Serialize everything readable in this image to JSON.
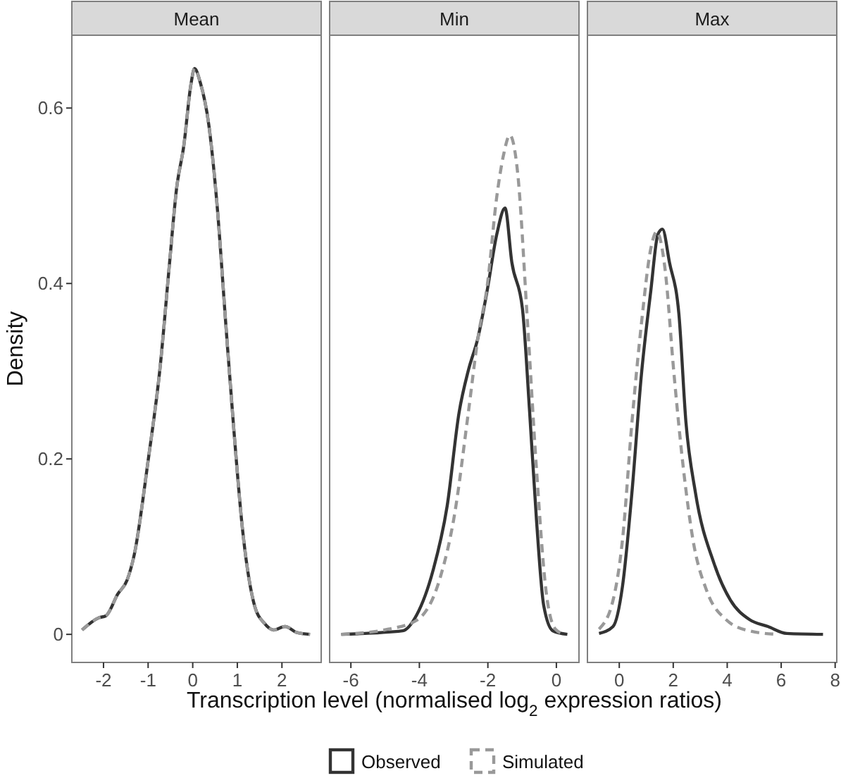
{
  "chart_data": [
    {
      "type": "line",
      "title": "Mean",
      "ylabel": "Density",
      "xlim": [
        -2.71,
        2.88
      ],
      "xticks": [
        -2,
        -1,
        0,
        1,
        2
      ],
      "ylim": [
        -0.032,
        0.683
      ],
      "yticks": [
        0,
        0.2,
        0.4,
        0.6
      ],
      "grid": false,
      "tick_labels": "xy",
      "series": [
        {
          "color": "#333333",
          "line_style": "solid",
          "x": [
            -2.48,
            -2.1,
            -1.95,
            -1.68,
            -1.47,
            -1.31,
            -1.0,
            -0.73,
            -0.52,
            -0.36,
            -0.2,
            -0.04,
            0.04,
            0.17,
            0.36,
            0.54,
            0.75,
            0.91,
            1.12,
            1.39,
            1.6,
            1.81,
            2.07,
            2.34,
            2.63
          ],
          "values": [
            0.005,
            0.019,
            0.021,
            0.046,
            0.062,
            0.091,
            0.198,
            0.305,
            0.423,
            0.509,
            0.557,
            0.627,
            0.645,
            0.629,
            0.581,
            0.493,
            0.348,
            0.241,
            0.118,
            0.032,
            0.013,
            0.005,
            0.009,
            0.002,
            0
          ]
        },
        {
          "color": "#999999",
          "line_style": "dashed",
          "x": [
            -2.48,
            -2.1,
            -1.95,
            -1.68,
            -1.47,
            -1.31,
            -1.0,
            -0.73,
            -0.52,
            -0.36,
            -0.2,
            -0.04,
            0.04,
            0.17,
            0.36,
            0.54,
            0.75,
            0.91,
            1.12,
            1.39,
            1.6,
            1.81,
            2.07,
            2.34,
            2.63
          ],
          "values": [
            0.005,
            0.019,
            0.021,
            0.046,
            0.062,
            0.091,
            0.198,
            0.305,
            0.423,
            0.509,
            0.557,
            0.627,
            0.645,
            0.629,
            0.581,
            0.493,
            0.348,
            0.241,
            0.118,
            0.032,
            0.013,
            0.005,
            0.009,
            0.002,
            0
          ]
        }
      ]
    },
    {
      "type": "line",
      "title": "Min",
      "xlabel": "Transcription level (normalised log$_{2}$ expression ratios)",
      "xlim": [
        -6.62,
        0.66
      ],
      "xticks": [
        -6,
        -4,
        -2,
        0
      ],
      "ylim": [
        -0.032,
        0.683
      ],
      "grid": false,
      "legend": "bottom",
      "tick_labels": "x",
      "series": [
        {
          "name": "Observed",
          "color": "#333333",
          "line_style": "solid",
          "x": [
            -6.28,
            -4.49,
            -4.08,
            -3.6,
            -3.19,
            -2.84,
            -2.57,
            -2.29,
            -2.02,
            -1.74,
            -1.5,
            -1.3,
            -0.99,
            -0.78,
            -0.58,
            -0.37,
            -0.1,
            0.32
          ],
          "values": [
            0,
            0.004,
            0.022,
            0.073,
            0.146,
            0.253,
            0.301,
            0.338,
            0.392,
            0.456,
            0.486,
            0.424,
            0.371,
            0.253,
            0.13,
            0.033,
            0.004,
            0
          ]
        },
        {
          "name": "Simulated",
          "color": "#999999",
          "line_style": "dashed",
          "x": [
            -6.28,
            -4.9,
            -4.08,
            -3.39,
            -2.98,
            -2.57,
            -2.29,
            -2.02,
            -1.74,
            -1.54,
            -1.36,
            -1.13,
            -0.85,
            -0.58,
            -0.3,
            -0.03,
            0.25
          ],
          "values": [
            0,
            0.006,
            0.016,
            0.065,
            0.135,
            0.253,
            0.338,
            0.397,
            0.499,
            0.547,
            0.569,
            0.526,
            0.36,
            0.188,
            0.049,
            0.006,
            0
          ]
        }
      ]
    },
    {
      "type": "line",
      "title": "Max",
      "xlim": [
        -1.18,
        8.06
      ],
      "xticks": [
        0,
        2,
        4,
        6,
        8
      ],
      "ylim": [
        -0.032,
        0.683
      ],
      "grid": false,
      "tick_labels": "x",
      "series": [
        {
          "color": "#333333",
          "line_style": "solid",
          "x": [
            -0.75,
            -0.23,
            0.12,
            0.47,
            0.82,
            1.17,
            1.43,
            1.6,
            1.86,
            2.21,
            2.47,
            2.82,
            3.51,
            4.12,
            4.82,
            5.51,
            6.21,
            7.55
          ],
          "values": [
            0.001,
            0.009,
            0.055,
            0.162,
            0.296,
            0.392,
            0.456,
            0.462,
            0.424,
            0.365,
            0.242,
            0.162,
            0.081,
            0.039,
            0.017,
            0.009,
            0.001,
            0
          ]
        },
        {
          "color": "#999999",
          "line_style": "dashed",
          "x": [
            -0.75,
            -0.23,
            0.12,
            0.47,
            0.82,
            1.17,
            1.39,
            1.69,
            2.03,
            2.38,
            2.73,
            3.25,
            3.95,
            4.82,
            5.86
          ],
          "values": [
            0.006,
            0.039,
            0.108,
            0.242,
            0.354,
            0.44,
            0.459,
            0.418,
            0.296,
            0.188,
            0.108,
            0.049,
            0.017,
            0.004,
            0
          ]
        }
      ]
    }
  ]
}
